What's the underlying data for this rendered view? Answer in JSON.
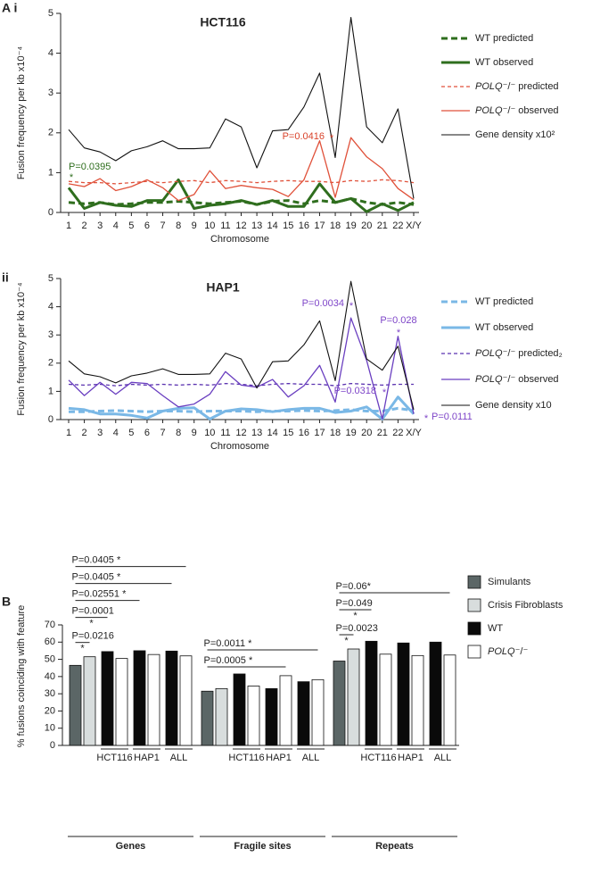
{
  "chart_data": [
    {
      "type": "line",
      "panel": "A i",
      "title": "HCT116",
      "xlabel": "Chromosome",
      "ylabel": "Fusion frequency per kb x10⁻⁴",
      "categories": [
        "1",
        "2",
        "3",
        "4",
        "5",
        "6",
        "7",
        "8",
        "9",
        "10",
        "11",
        "12",
        "13",
        "14",
        "15",
        "16",
        "17",
        "18",
        "19",
        "20",
        "21",
        "22",
        "X/Y"
      ],
      "ylim": [
        0,
        5
      ],
      "yticks": [
        0,
        1,
        2,
        3,
        4,
        5
      ],
      "series": [
        {
          "name": "WT predicted",
          "color": "#2f6e1e",
          "dash": true,
          "width": 3,
          "values": [
            0.25,
            0.22,
            0.25,
            0.2,
            0.22,
            0.25,
            0.25,
            0.28,
            0.25,
            0.22,
            0.25,
            0.28,
            0.2,
            0.28,
            0.3,
            0.22,
            0.3,
            0.25,
            0.35,
            0.25,
            0.2,
            0.25,
            0.2
          ]
        },
        {
          "name": "WT observed",
          "color": "#2f6e1e",
          "dash": false,
          "width": 3,
          "values": [
            0.62,
            0.1,
            0.25,
            0.18,
            0.15,
            0.3,
            0.3,
            0.82,
            0.1,
            0.18,
            0.22,
            0.3,
            0.2,
            0.3,
            0.15,
            0.15,
            0.72,
            0.25,
            0.35,
            0.02,
            0.22,
            0.05,
            0.25
          ]
        },
        {
          "name": "POLQ⁻/⁻ predicted",
          "color": "#e0513a",
          "dash": true,
          "width": 1.3,
          "values": [
            0.78,
            0.75,
            0.75,
            0.72,
            0.75,
            0.78,
            0.75,
            0.78,
            0.8,
            0.75,
            0.8,
            0.78,
            0.75,
            0.78,
            0.8,
            0.78,
            0.78,
            0.75,
            0.8,
            0.78,
            0.82,
            0.8,
            0.75
          ]
        },
        {
          "name": "POLQ⁻/⁻ observed",
          "color": "#e0513a",
          "dash": false,
          "width": 1.3,
          "values": [
            0.72,
            0.65,
            0.85,
            0.55,
            0.65,
            0.82,
            0.62,
            0.3,
            0.45,
            1.05,
            0.6,
            0.68,
            0.62,
            0.58,
            0.4,
            0.82,
            1.8,
            0.38,
            1.88,
            1.4,
            1.1,
            0.6,
            0.32
          ]
        },
        {
          "name": "Gene density x10²",
          "color": "#111111",
          "dash": false,
          "width": 1.1,
          "values": [
            2.08,
            1.62,
            1.52,
            1.3,
            1.55,
            1.65,
            1.8,
            1.6,
            1.6,
            1.62,
            2.35,
            2.15,
            1.12,
            2.05,
            2.08,
            2.65,
            3.5,
            1.38,
            4.9,
            2.15,
            1.75,
            2.6,
            0.35
          ]
        }
      ],
      "annotations": [
        {
          "text": "P=0.0395",
          "color": "#2f6e1e"
        },
        {
          "text": "*",
          "color": "#2f6e1e"
        },
        {
          "text": "P=0.0416",
          "color": "#d9432b"
        },
        {
          "text": "*",
          "color": "#d9432b"
        }
      ]
    },
    {
      "type": "line",
      "panel": "ii",
      "title": "HAP1",
      "xlabel": "Chromosome",
      "ylabel": "Fusion frequency per kb x10⁻⁴",
      "categories": [
        "1",
        "2",
        "3",
        "4",
        "5",
        "6",
        "7",
        "8",
        "9",
        "10",
        "11",
        "12",
        "13",
        "14",
        "15",
        "16",
        "17",
        "18",
        "19",
        "20",
        "21",
        "22",
        "X/Y"
      ],
      "ylim": [
        0,
        5
      ],
      "yticks": [
        0,
        1,
        2,
        3,
        4,
        5
      ],
      "series": [
        {
          "name": "WT predicted",
          "color": "#7ab8e6",
          "dash": true,
          "width": 3,
          "values": [
            0.28,
            0.28,
            0.3,
            0.32,
            0.3,
            0.28,
            0.3,
            0.3,
            0.28,
            0.3,
            0.3,
            0.3,
            0.28,
            0.3,
            0.3,
            0.32,
            0.3,
            0.32,
            0.35,
            0.3,
            0.3,
            0.4,
            0.32
          ]
        },
        {
          "name": "WT observed",
          "color": "#7ab8e6",
          "dash": false,
          "width": 3,
          "values": [
            0.4,
            0.35,
            0.2,
            0.2,
            0.15,
            0.05,
            0.3,
            0.4,
            0.42,
            0.02,
            0.3,
            0.38,
            0.35,
            0.28,
            0.35,
            0.4,
            0.4,
            0.25,
            0.3,
            0.45,
            0.02,
            0.8,
            0.2
          ]
        },
        {
          "name": "POLQ⁻/⁻ predicted₂",
          "color": "#5b33b0",
          "dash": true,
          "width": 1.3,
          "values": [
            1.25,
            1.22,
            1.25,
            1.2,
            1.25,
            1.22,
            1.25,
            1.22,
            1.25,
            1.22,
            1.28,
            1.25,
            1.2,
            1.25,
            1.28,
            1.25,
            1.25,
            1.2,
            1.28,
            1.25,
            1.22,
            1.25,
            1.25
          ]
        },
        {
          "name": "POLQ⁻/⁻ observed",
          "color": "#6a3fc0",
          "dash": false,
          "width": 1.3,
          "values": [
            1.4,
            0.85,
            1.32,
            0.9,
            1.32,
            1.28,
            0.85,
            0.45,
            0.55,
            0.9,
            1.7,
            1.22,
            1.15,
            1.42,
            0.8,
            1.2,
            1.92,
            0.62,
            3.6,
            2.1,
            0.02,
            2.95,
            0.2
          ]
        },
        {
          "name": "Gene density x10",
          "color": "#111111",
          "dash": false,
          "width": 1.1,
          "values": [
            2.08,
            1.62,
            1.52,
            1.3,
            1.55,
            1.65,
            1.8,
            1.6,
            1.6,
            1.62,
            2.35,
            2.15,
            1.12,
            2.05,
            2.08,
            2.65,
            3.5,
            1.38,
            4.9,
            2.15,
            1.75,
            2.6,
            0.35
          ]
        }
      ],
      "annotations": [
        {
          "text": "P=0.0034",
          "color": "#7e45c8"
        },
        {
          "text": "*",
          "color": "#7e45c8"
        },
        {
          "text": "P=0.028",
          "color": "#7e45c8"
        },
        {
          "text": "*",
          "color": "#7e45c8"
        },
        {
          "text": "P=0.0318",
          "color": "#7e45c8"
        },
        {
          "text": "*",
          "color": "#7e45c8"
        },
        {
          "text": "P=0.0111",
          "color": "#7e45c8"
        },
        {
          "text": "*",
          "color": "#7e45c8"
        }
      ]
    },
    {
      "type": "grouped_bar",
      "panel": "B",
      "ylabel": "% fusions coinciding with feature",
      "categories": [
        "Genes",
        "Fragile sites",
        "Repeats"
      ],
      "subgroups": [
        "HCT116",
        "HAP1",
        "ALL"
      ],
      "ylim": [
        0,
        70
      ],
      "yticks": [
        0,
        10,
        20,
        30,
        40,
        50,
        60,
        70
      ],
      "series": [
        {
          "name": "Simulants",
          "color": "#5b6666",
          "values": [
            46.5,
            31.5,
            49
          ]
        },
        {
          "name": "Crisis Fibroblasts",
          "color": "#d8dddd",
          "values": [
            51.5,
            33,
            56
          ]
        },
        {
          "name": "WT",
          "color": "#0a0a0a",
          "values": [
            [
              54.5,
              55,
              54.8
            ],
            [
              41.5,
              33,
              37
            ],
            [
              60.5,
              59.5,
              60
            ]
          ]
        },
        {
          "name": "POLQ⁻/⁻",
          "color": "#ffffff",
          "values": [
            [
              50.5,
              52.8,
              52
            ],
            [
              34.5,
              40.5,
              38.2
            ],
            [
              53,
              52.2,
              52.5
            ]
          ]
        }
      ],
      "comparisons": [
        [
          {
            "label": "P=0.0216",
            "mark": "*"
          },
          {
            "label": "P=0.0001",
            "mark": "*"
          },
          {
            "label": "P=0.02551 *"
          },
          {
            "label": "P=0.0405 *"
          },
          {
            "label": "P=0.0405 *"
          }
        ],
        [
          {
            "label": "P=0.0005 *"
          },
          {
            "label": "P=0.0011 *"
          }
        ],
        [
          {
            "label": "P=0.0023",
            "mark": "*"
          },
          {
            "label": "P=0.049",
            "mark": "*"
          },
          {
            "label": "P=0.06*"
          }
        ]
      ]
    }
  ]
}
